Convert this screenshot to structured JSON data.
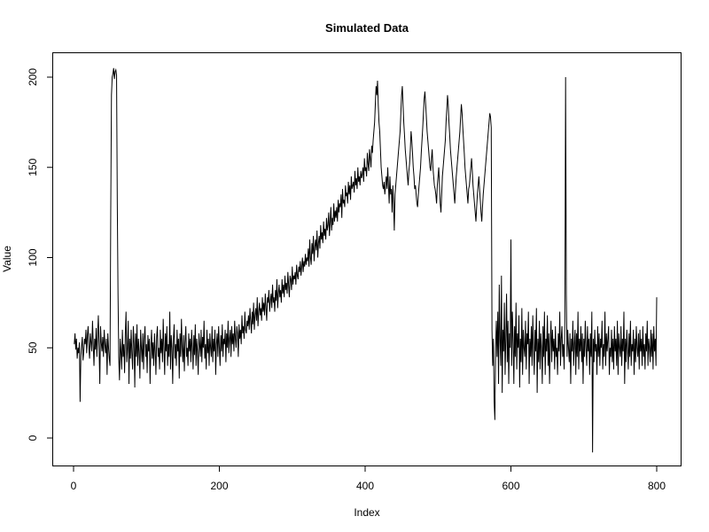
{
  "chart_data": {
    "type": "line",
    "title": "Simulated Data",
    "xlabel": "Index",
    "ylabel": "Value",
    "xlim": [
      0,
      800
    ],
    "ylim": [
      -10,
      210
    ],
    "x_ticks": [
      0,
      200,
      400,
      600,
      800
    ],
    "y_ticks": [
      0,
      50,
      100,
      150,
      200
    ],
    "grid": false,
    "legend": "none",
    "series": [
      {
        "values": [
          52,
          58,
          49,
          55,
          44,
          50,
          47,
          53,
          20,
          45,
          51,
          56,
          43,
          48,
          55,
          52,
          60,
          47,
          57,
          62,
          50,
          44,
          58,
          53,
          48,
          65,
          52,
          40,
          55,
          49,
          61,
          45,
          57,
          68,
          50,
          30,
          62,
          53,
          48,
          56,
          45,
          60,
          52,
          47,
          55,
          35,
          58,
          50,
          44,
          40,
          125,
          190,
          200,
          202,
          205,
          199,
          203,
          204,
          201,
          130,
          80,
          45,
          32,
          55,
          48,
          38,
          60,
          45,
          52,
          36,
          58,
          70,
          42,
          50,
          65,
          30,
          55,
          44,
          60,
          47,
          38,
          62,
          52,
          28,
          58,
          45,
          63,
          40,
          55,
          48,
          33,
          60,
          50,
          42,
          58,
          38,
          55,
          62,
          45,
          52,
          36,
          57,
          48,
          55,
          30,
          50,
          60,
          44,
          53,
          40,
          58,
          48,
          35,
          56,
          62,
          45,
          50,
          38,
          60,
          47,
          55,
          42,
          66,
          50,
          35,
          58,
          48,
          62,
          40,
          52,
          45,
          70,
          38,
          57,
          50,
          30,
          55,
          63,
          44,
          52,
          40,
          60,
          48,
          55,
          33,
          58,
          45,
          66,
          50,
          42,
          57,
          37,
          53,
          62,
          45,
          50,
          40,
          58,
          48,
          55,
          42,
          60,
          50,
          38,
          57,
          46,
          63,
          40,
          55,
          48,
          35,
          58,
          52,
          45,
          60,
          42,
          56,
          50,
          65,
          44,
          52,
          38,
          60,
          47,
          55,
          40,
          58,
          50,
          45,
          62,
          42,
          55,
          48,
          60,
          35,
          52,
          58,
          45,
          62,
          50,
          40,
          57,
          48,
          63,
          45,
          55,
          52,
          60,
          42,
          58,
          50,
          65,
          47,
          55,
          60,
          45,
          62,
          52,
          58,
          48,
          65,
          55,
          50,
          62,
          58,
          45,
          63,
          55,
          60,
          52,
          68,
          58,
          62,
          55,
          70,
          60,
          58,
          65,
          62,
          68,
          60,
          72,
          65,
          58,
          70,
          63,
          75,
          60,
          68,
          72,
          65,
          78,
          62,
          70,
          75,
          68,
          72,
          65,
          78,
          70,
          75,
          68,
          80,
          72,
          65,
          78,
          75,
          82,
          70,
          76,
          80,
          72,
          85,
          75,
          78,
          70,
          82,
          76,
          88,
          72,
          80,
          85,
          78,
          82,
          75,
          88,
          80,
          85,
          78,
          90,
          82,
          86,
          80,
          92,
          85,
          78,
          90,
          88,
          82,
          95,
          85,
          90,
          88,
          92,
          85,
          96,
          90,
          88,
          95,
          92,
          98,
          90,
          95,
          100,
          92,
          98,
          95,
          102,
          96,
          100,
          98,
          105,
          95,
          110,
          100,
          96,
          108,
          102,
          112,
          98,
          106,
          110,
          104,
          115,
          100,
          108,
          112,
          105,
          118,
          110,
          114,
          108,
          120,
          112,
          116,
          110,
          122,
          115,
          118,
          125,
          112,
          120,
          128,
          115,
          122,
          118,
          130,
          120,
          126,
          122,
          128,
          120,
          132,
          125,
          130,
          128,
          135,
          122,
          138,
          130,
          132,
          128,
          140,
          134,
          136,
          130,
          142,
          135,
          140,
          132,
          145,
          138,
          140,
          142,
          136,
          148,
          140,
          144,
          138,
          150,
          142,
          145,
          140,
          148,
          144,
          146,
          150,
          142,
          155,
          148,
          150,
          145,
          158,
          152,
          148,
          160,
          155,
          150,
          162,
          158,
          165,
          170,
          175,
          185,
          195,
          190,
          198,
          185,
          175,
          170,
          160,
          150,
          145,
          140,
          138,
          142,
          135,
          140,
          145,
          138,
          150,
          140,
          130,
          145,
          135,
          138,
          125,
          140,
          130,
          115,
          135,
          140,
          145,
          150,
          155,
          160,
          165,
          170,
          180,
          190,
          195,
          185,
          175,
          168,
          160,
          155,
          150,
          145,
          140,
          148,
          152,
          160,
          170,
          165,
          158,
          150,
          145,
          138,
          140,
          135,
          130,
          128,
          135,
          140,
          145,
          150,
          158,
          165,
          172,
          180,
          188,
          192,
          185,
          178,
          170,
          165,
          160,
          155,
          150,
          148,
          155,
          160,
          150,
          145,
          140,
          138,
          135,
          130,
          140,
          145,
          150,
          140,
          130,
          125,
          135,
          145,
          150,
          155,
          160,
          165,
          175,
          182,
          190,
          185,
          175,
          168,
          160,
          155,
          150,
          145,
          140,
          135,
          130,
          138,
          145,
          150,
          155,
          160,
          165,
          170,
          178,
          185,
          180,
          172,
          165,
          158,
          150,
          145,
          140,
          135,
          130,
          138,
          140,
          145,
          150,
          155,
          148,
          140,
          135,
          130,
          125,
          120,
          128,
          135,
          140,
          145,
          138,
          132,
          125,
          120,
          128,
          135,
          140,
          145,
          150,
          155,
          160,
          165,
          170,
          175,
          180,
          178,
          172,
          60,
          40,
          55,
          20,
          10,
          50,
          65,
          45,
          70,
          30,
          85,
          55,
          40,
          90,
          25,
          60,
          48,
          75,
          35,
          55,
          80,
          42,
          65,
          30,
          58,
          50,
          110,
          40,
          70,
          55,
          30,
          62,
          45,
          75,
          38,
          58,
          50,
          68,
          28,
          55,
          42,
          72,
          35,
          60,
          50,
          45,
          65,
          38,
          58,
          52,
          70,
          30,
          55,
          45,
          62,
          40,
          68,
          50,
          35,
          60,
          48,
          72,
          25,
          55,
          42,
          65,
          38,
          58,
          50,
          30,
          62,
          45,
          70,
          35,
          55,
          48,
          68,
          40,
          58,
          30,
          52,
          65,
          42,
          60,
          48,
          55,
          38,
          62,
          45,
          50,
          35,
          58,
          48,
          70,
          40,
          55,
          62,
          45,
          52,
          38,
          65,
          200,
          80,
          45,
          60,
          50,
          42,
          58,
          30,
          55,
          48,
          65,
          40,
          52,
          60,
          35,
          58,
          45,
          70,
          38,
          55,
          48,
          62,
          42,
          58,
          30,
          55,
          45,
          65,
          50,
          40,
          62,
          48,
          55,
          35,
          58,
          45,
          70,
          -8,
          55,
          42,
          60,
          48,
          52,
          35,
          62,
          45,
          58,
          40,
          55,
          50,
          65,
          38,
          52,
          45,
          70,
          40,
          58,
          48,
          55,
          62,
          35,
          50,
          45,
          60,
          42,
          55,
          38,
          62,
          48,
          55,
          40,
          65,
          35,
          58,
          50,
          45,
          62,
          40,
          55,
          48,
          70,
          30,
          55,
          42,
          60,
          50,
          38,
          58,
          45,
          65,
          40,
          52,
          48,
          60,
          35,
          55,
          42,
          62,
          50,
          45,
          58,
          38,
          60,
          48,
          55,
          40,
          62,
          45,
          52,
          38,
          58,
          48,
          65,
          40,
          55,
          50,
          42,
          60,
          45,
          58,
          38,
          62,
          48,
          55,
          40,
          78
        ]
      }
    ]
  }
}
